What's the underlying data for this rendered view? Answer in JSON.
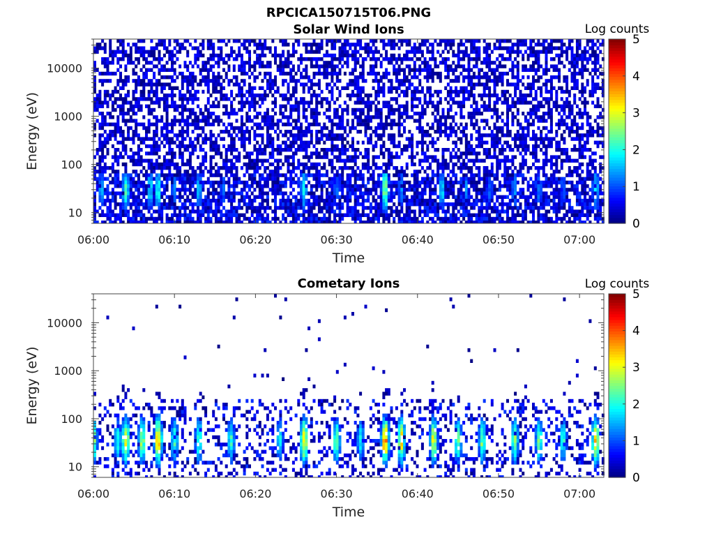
{
  "page_title": "RPCICA150715T06.PNG",
  "chart_data": [
    {
      "type": "heatmap",
      "title": "Solar Wind Ions",
      "xlabel": "Time",
      "ylabel": "Energy (eV)",
      "x_ticks": [
        "06:00",
        "06:10",
        "06:20",
        "06:30",
        "06:40",
        "06:50",
        "07:00"
      ],
      "x_range": [
        "06:00",
        "07:03"
      ],
      "y_scale": "log",
      "y_ticks": [
        "10",
        "100",
        "1000",
        "10000"
      ],
      "y_range": [
        6,
        40000
      ],
      "colorbar": {
        "label": "Log counts",
        "range": [
          0,
          5
        ],
        "ticks": [
          "0",
          "1",
          "2",
          "3",
          "4",
          "5"
        ],
        "colormap": "jet"
      },
      "features": {
        "background_fill": 0.55,
        "background_level_range": [
          0,
          0.7
        ],
        "low_energy_band_eV": [
          6,
          60
        ],
        "peak_energy_eV": 30,
        "bursts": [
          {
            "time": "06:01",
            "log_counts": 1.5
          },
          {
            "time": "06:04",
            "log_counts": 2.2
          },
          {
            "time": "06:07",
            "log_counts": 1.8
          },
          {
            "time": "06:08",
            "log_counts": 2.0
          },
          {
            "time": "06:10",
            "log_counts": 1.3
          },
          {
            "time": "06:13",
            "log_counts": 1.6
          },
          {
            "time": "06:16",
            "log_counts": 1.2
          },
          {
            "time": "06:26",
            "log_counts": 1.9
          },
          {
            "time": "06:30",
            "log_counts": 1.2
          },
          {
            "time": "06:36",
            "log_counts": 2.6
          },
          {
            "time": "06:38",
            "log_counts": 1.4
          },
          {
            "time": "06:43",
            "log_counts": 1.8
          },
          {
            "time": "06:46",
            "log_counts": 1.3
          },
          {
            "time": "06:49",
            "log_counts": 1.2
          },
          {
            "time": "06:52",
            "log_counts": 1.4
          },
          {
            "time": "06:55",
            "log_counts": 1.3
          },
          {
            "time": "06:58",
            "log_counts": 1.2
          },
          {
            "time": "07:02",
            "log_counts": 1.8
          }
        ]
      }
    },
    {
      "type": "heatmap",
      "title": "Cometary Ions",
      "xlabel": "Time",
      "ylabel": "Energy (eV)",
      "x_ticks": [
        "06:00",
        "06:10",
        "06:20",
        "06:30",
        "06:40",
        "06:50",
        "07:00"
      ],
      "x_range": [
        "06:00",
        "07:03"
      ],
      "y_scale": "log",
      "y_ticks": [
        "10",
        "100",
        "1000",
        "10000"
      ],
      "y_range": [
        6,
        40000
      ],
      "colorbar": {
        "label": "Log counts",
        "range": [
          0,
          5
        ],
        "ticks": [
          "0",
          "1",
          "2",
          "3",
          "4",
          "5"
        ],
        "colormap": "jet"
      },
      "features": {
        "background_fill": 0.008,
        "background_level_range": [
          0,
          0.4
        ],
        "low_energy_band_eV": [
          6,
          250
        ],
        "peak_energy_eV": 35,
        "bursts": [
          {
            "time": "06:00",
            "log_counts": 2.8
          },
          {
            "time": "06:03",
            "log_counts": 2.2
          },
          {
            "time": "06:04",
            "log_counts": 3.4
          },
          {
            "time": "06:06",
            "log_counts": 2.8
          },
          {
            "time": "06:08",
            "log_counts": 3.8
          },
          {
            "time": "06:10",
            "log_counts": 2.3
          },
          {
            "time": "06:13",
            "log_counts": 2.4
          },
          {
            "time": "06:17",
            "log_counts": 2.2
          },
          {
            "time": "06:23",
            "log_counts": 2.0
          },
          {
            "time": "06:26",
            "log_counts": 3.4
          },
          {
            "time": "06:30",
            "log_counts": 2.6
          },
          {
            "time": "06:33",
            "log_counts": 2.0
          },
          {
            "time": "06:36",
            "log_counts": 3.9
          },
          {
            "time": "06:38",
            "log_counts": 3.4
          },
          {
            "time": "06:42",
            "log_counts": 3.2
          },
          {
            "time": "06:45",
            "log_counts": 2.6
          },
          {
            "time": "06:48",
            "log_counts": 2.6
          },
          {
            "time": "06:52",
            "log_counts": 2.6
          },
          {
            "time": "06:55",
            "log_counts": 2.4
          },
          {
            "time": "06:58",
            "log_counts": 2.2
          },
          {
            "time": "07:02",
            "log_counts": 3.4
          }
        ]
      }
    }
  ]
}
